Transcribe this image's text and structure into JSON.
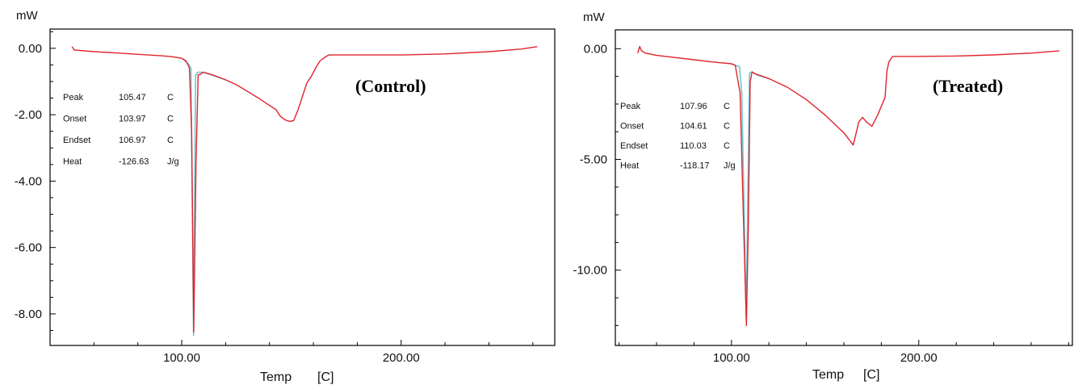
{
  "colors": {
    "curve": "#e0242b",
    "baseline": "#6cc9d6",
    "axis": "#000000"
  },
  "chart_data": [
    {
      "type": "line",
      "tag": "(Control)",
      "y_unit": "mW",
      "xlabel": "Temp",
      "xunit": "[C]",
      "x_ticks": [
        100,
        200
      ],
      "x_tick_labels": [
        "100.00",
        "200.00"
      ],
      "y_ticks": [
        0,
        -2,
        -4,
        -6,
        -8
      ],
      "y_tick_labels": [
        "0.00",
        "-2.00",
        "-4.00",
        "-6.00",
        "-8.00"
      ],
      "xlim": [
        40,
        270
      ],
      "ylim": [
        -8.95,
        0.58
      ],
      "stats": [
        {
          "label": "Peak",
          "value": "105.47",
          "unit": "C"
        },
        {
          "label": "Onset",
          "value": "103.97",
          "unit": "C"
        },
        {
          "label": "Endset",
          "value": "106.97",
          "unit": "C"
        },
        {
          "label": "Heat",
          "value": "-126.63",
          "unit": "J/g"
        }
      ],
      "series": [
        {
          "x": [
            50,
            51,
            60,
            70,
            80,
            90,
            95,
            100,
            102,
            103.5,
            104.5,
            105.47,
            106.5,
            107.5,
            108.5,
            110,
            115,
            120,
            125,
            130,
            135,
            140,
            143,
            145,
            147,
            149,
            151,
            153,
            155,
            157,
            159,
            161,
            163,
            165,
            167,
            170,
            180,
            200,
            220,
            240,
            255,
            262
          ],
          "y": [
            0.05,
            -0.05,
            -0.1,
            -0.14,
            -0.18,
            -0.22,
            -0.25,
            -0.3,
            -0.38,
            -0.6,
            -2.5,
            -8.55,
            -3.5,
            -0.8,
            -0.78,
            -0.72,
            -0.82,
            -0.95,
            -1.1,
            -1.3,
            -1.5,
            -1.72,
            -1.85,
            -2.05,
            -2.15,
            -2.2,
            -2.18,
            -1.85,
            -1.45,
            -1.05,
            -0.85,
            -0.6,
            -0.38,
            -0.28,
            -0.2,
            -0.2,
            -0.2,
            -0.2,
            -0.17,
            -0.1,
            -0.02,
            0.05
          ]
        },
        {
          "x": [
            100.5,
            103.2,
            104.2,
            105.4,
            106.3,
            107.3,
            110,
            120
          ],
          "y": [
            -0.32,
            -0.48,
            -0.6,
            -8.65,
            -0.82,
            -0.72,
            -0.72,
            -0.95
          ]
        }
      ]
    },
    {
      "type": "line",
      "tag": "(Treated)",
      "y_unit": "mW",
      "xlabel": "Temp",
      "xunit": "[C]",
      "x_ticks": [
        100,
        200
      ],
      "x_tick_labels": [
        "100.00",
        "200.00"
      ],
      "y_ticks": [
        0,
        -5,
        -10
      ],
      "y_tick_labels": [
        "0.00",
        "-5.00",
        "-10.00"
      ],
      "xlim": [
        38,
        282
      ],
      "ylim": [
        -13.4,
        0.85
      ],
      "stats": [
        {
          "label": "Peak",
          "value": "107.96",
          "unit": "C"
        },
        {
          "label": "Onset",
          "value": "104.61",
          "unit": "C"
        },
        {
          "label": "Endset",
          "value": "110.03",
          "unit": "C"
        },
        {
          "label": "Heat",
          "value": "-118.17",
          "unit": "J/g"
        }
      ],
      "series": [
        {
          "x": [
            50,
            51,
            52,
            54,
            60,
            70,
            80,
            90,
            100,
            102,
            104.6,
            106.5,
            107.96,
            109,
            110,
            111,
            112,
            113,
            115,
            120,
            130,
            140,
            150,
            160,
            165,
            168,
            170,
            172,
            175,
            178,
            180,
            182,
            183,
            184,
            186,
            190,
            200,
            220,
            240,
            260,
            275
          ],
          "y": [
            -0.2,
            0.1,
            -0.1,
            -0.2,
            -0.3,
            -0.4,
            -0.5,
            -0.6,
            -0.68,
            -0.75,
            -2.0,
            -8.0,
            -12.5,
            -8.0,
            -1.5,
            -1.05,
            -1.1,
            -1.15,
            -1.2,
            -1.35,
            -1.75,
            -2.3,
            -3.0,
            -3.8,
            -4.35,
            -3.3,
            -3.1,
            -3.3,
            -3.5,
            -3.0,
            -2.6,
            -2.2,
            -1.0,
            -0.6,
            -0.35,
            -0.35,
            -0.35,
            -0.33,
            -0.28,
            -0.2,
            -0.1
          ]
        },
        {
          "x": [
            100,
            104.3,
            105.5,
            107.9,
            109.6,
            111,
            114,
            120
          ],
          "y": [
            -0.68,
            -0.82,
            -2.0,
            -12.1,
            -1.1,
            -1.05,
            -1.2,
            -1.35
          ]
        }
      ]
    }
  ]
}
